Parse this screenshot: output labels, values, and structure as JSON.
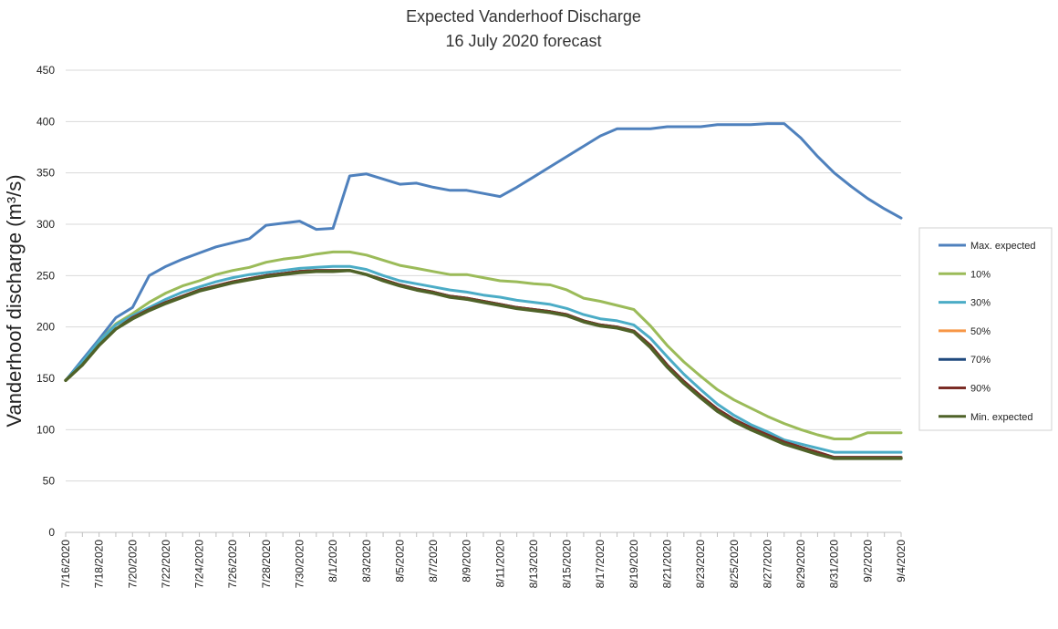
{
  "chart_data": {
    "type": "line",
    "title_line1": "Expected Vanderhoof Discharge",
    "title_line2": "16 July 2020 forecast",
    "ylabel": "Vanderhoof discharge (m³/s)",
    "xlabel": "",
    "ylim": [
      0,
      450
    ],
    "yticks": [
      0,
      50,
      100,
      150,
      200,
      250,
      300,
      350,
      400,
      450
    ],
    "grid": true,
    "legend_position": "right",
    "x": [
      "7/16/2020",
      "7/17/2020",
      "7/18/2020",
      "7/19/2020",
      "7/20/2020",
      "7/21/2020",
      "7/22/2020",
      "7/23/2020",
      "7/24/2020",
      "7/25/2020",
      "7/26/2020",
      "7/27/2020",
      "7/28/2020",
      "7/29/2020",
      "7/30/2020",
      "7/31/2020",
      "8/1/2020",
      "8/2/2020",
      "8/3/2020",
      "8/4/2020",
      "8/5/2020",
      "8/6/2020",
      "8/7/2020",
      "8/8/2020",
      "8/9/2020",
      "8/10/2020",
      "8/11/2020",
      "8/12/2020",
      "8/13/2020",
      "8/14/2020",
      "8/15/2020",
      "8/16/2020",
      "8/17/2020",
      "8/18/2020",
      "8/19/2020",
      "8/20/2020",
      "8/21/2020",
      "8/22/2020",
      "8/23/2020",
      "8/24/2020",
      "8/25/2020",
      "8/26/2020",
      "8/27/2020",
      "8/28/2020",
      "8/29/2020",
      "8/30/2020",
      "8/31/2020",
      "9/1/2020",
      "9/2/2020",
      "9/3/2020",
      "9/4/2020"
    ],
    "xtick_labels": [
      "7/16/2020",
      "7/18/2020",
      "7/20/2020",
      "7/22/2020",
      "7/24/2020",
      "7/26/2020",
      "7/28/2020",
      "7/30/2020",
      "8/1/2020",
      "8/3/2020",
      "8/5/2020",
      "8/7/2020",
      "8/9/2020",
      "8/11/2020",
      "8/13/2020",
      "8/15/2020",
      "8/17/2020",
      "8/19/2020",
      "8/21/2020",
      "8/23/2020",
      "8/25/2020",
      "8/27/2020",
      "8/29/2020",
      "8/31/2020",
      "9/2/2020",
      "9/4/2020"
    ],
    "series": [
      {
        "name": "Max. expected",
        "color": "#4f81bd",
        "values": [
          148,
          168,
          188,
          209,
          219,
          250,
          259,
          266,
          272,
          278,
          282,
          286,
          299,
          301,
          303,
          295,
          296,
          347,
          349,
          344,
          339,
          340,
          336,
          333,
          333,
          330,
          327,
          336,
          346,
          356,
          366,
          376,
          386,
          393,
          393,
          393,
          395,
          395,
          395,
          397,
          397,
          397,
          398,
          398,
          384,
          366,
          350,
          337,
          325,
          315,
          306
        ]
      },
      {
        "name": "10%",
        "color": "#9bbb59",
        "values": [
          148,
          165,
          186,
          203,
          213,
          224,
          233,
          240,
          245,
          251,
          255,
          258,
          263,
          266,
          268,
          271,
          273,
          273,
          270,
          265,
          260,
          257,
          254,
          251,
          251,
          248,
          245,
          244,
          242,
          241,
          236,
          228,
          225,
          221,
          217,
          201,
          182,
          166,
          152,
          139,
          129,
          121,
          113,
          106,
          100,
          95,
          91,
          91,
          97,
          97,
          97
        ]
      },
      {
        "name": "30%",
        "color": "#4bacc6",
        "values": [
          148,
          166,
          186,
          202,
          211,
          219,
          227,
          234,
          239,
          244,
          248,
          251,
          253,
          255,
          257,
          258,
          259,
          259,
          256,
          250,
          245,
          242,
          239,
          236,
          234,
          231,
          229,
          226,
          224,
          222,
          218,
          212,
          208,
          206,
          202,
          189,
          171,
          154,
          139,
          125,
          114,
          105,
          98,
          90,
          86,
          82,
          78,
          78,
          78,
          78,
          78
        ]
      },
      {
        "name": "50%",
        "color": "#f79646",
        "values": [
          148,
          163,
          182,
          198,
          209,
          217,
          224,
          230,
          236,
          240,
          244,
          247,
          250,
          252,
          254,
          255,
          255,
          255,
          251,
          246,
          241,
          237,
          234,
          230,
          228,
          225,
          222,
          219,
          217,
          215,
          212,
          206,
          202,
          200,
          196,
          182,
          163,
          147,
          133,
          120,
          110,
          102,
          95,
          88,
          83,
          78,
          73,
          73,
          73,
          73,
          73
        ]
      },
      {
        "name": "70%",
        "color": "#1f497d",
        "values": [
          148,
          163,
          182,
          198,
          209,
          217,
          224,
          230,
          236,
          240,
          244,
          247,
          250,
          252,
          254,
          255,
          255,
          255,
          251,
          246,
          241,
          237,
          234,
          230,
          228,
          225,
          222,
          219,
          217,
          215,
          212,
          206,
          202,
          200,
          196,
          182,
          163,
          147,
          133,
          120,
          110,
          102,
          95,
          88,
          83,
          78,
          73,
          73,
          73,
          73,
          73
        ]
      },
      {
        "name": "90%",
        "color": "#7b2d26",
        "values": [
          148,
          163,
          182,
          198,
          209,
          217,
          224,
          230,
          236,
          240,
          244,
          247,
          250,
          252,
          254,
          255,
          255,
          255,
          251,
          246,
          241,
          237,
          234,
          230,
          228,
          225,
          222,
          219,
          217,
          215,
          212,
          206,
          202,
          200,
          196,
          182,
          163,
          147,
          133,
          120,
          110,
          102,
          95,
          88,
          83,
          78,
          73,
          73,
          73,
          73,
          73
        ]
      },
      {
        "name": "Min. expected",
        "color": "#4f6228",
        "values": [
          148,
          163,
          182,
          198,
          208,
          216,
          223,
          229,
          235,
          239,
          243,
          246,
          249,
          251,
          253,
          254,
          254,
          255,
          251,
          245,
          240,
          236,
          233,
          229,
          227,
          224,
          221,
          218,
          216,
          214,
          211,
          205,
          201,
          199,
          195,
          180,
          161,
          145,
          131,
          118,
          108,
          100,
          93,
          86,
          81,
          76,
          72,
          72,
          72,
          72,
          72
        ]
      }
    ]
  }
}
